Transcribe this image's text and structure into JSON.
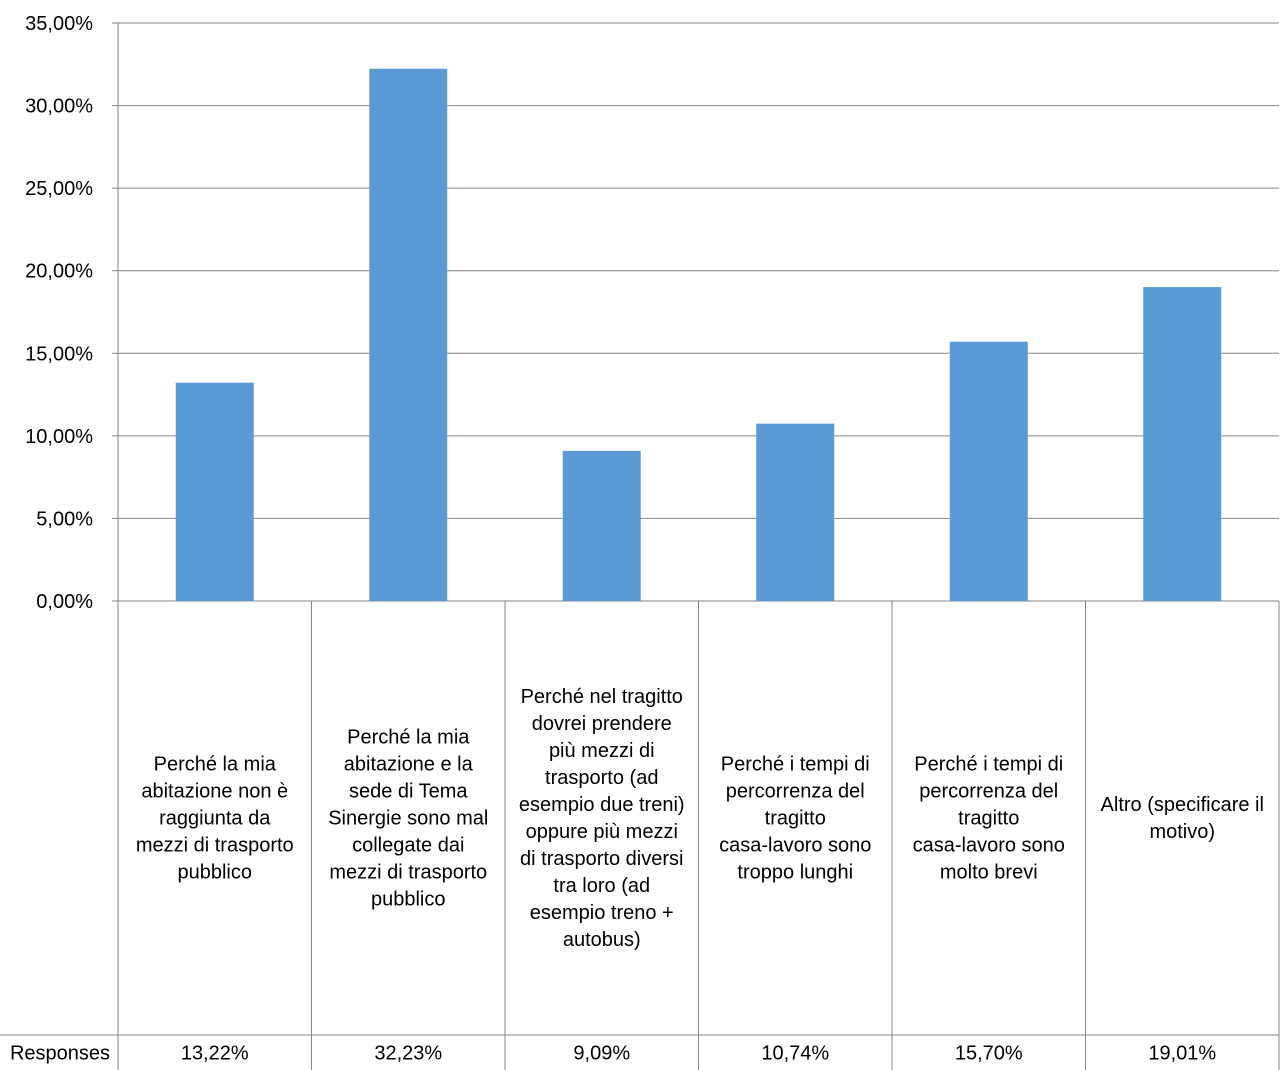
{
  "chart_data": {
    "type": "bar",
    "title": "",
    "xlabel": "",
    "ylabel": "",
    "ylim": [
      0,
      35
    ],
    "yticks": [
      "0,00%",
      "5,00%",
      "10,00%",
      "15,00%",
      "20,00%",
      "25,00%",
      "30,00%",
      "35,00%"
    ],
    "grid": true,
    "bar_color": "#5b9bd5",
    "categories": [
      "Perché la mia abitazione non è raggiunta da mezzi di trasporto pubblico",
      "Perché la mia abitazione e la sede di Tema Sinergie sono mal collegate dai mezzi di trasporto pubblico",
      "Perché nel tragitto dovrei prendere più mezzi di trasporto (ad esempio due treni) oppure più mezzi di trasporto diversi tra loro (ad esempio treno + autobus)",
      "Perché i tempi di percorrenza del tragitto casa-lavoro sono troppo lunghi",
      "Perché i tempi di percorrenza del tragitto casa-lavoro sono molto brevi",
      "Altro (specificare il motivo)"
    ],
    "series": [
      {
        "name": "Responses",
        "values": [
          13.22,
          32.23,
          9.09,
          10.74,
          15.7,
          19.01
        ],
        "labels": [
          "13,22%",
          "32,23%",
          "9,09%",
          "10,74%",
          "15,70%",
          "19,01%"
        ]
      }
    ]
  }
}
